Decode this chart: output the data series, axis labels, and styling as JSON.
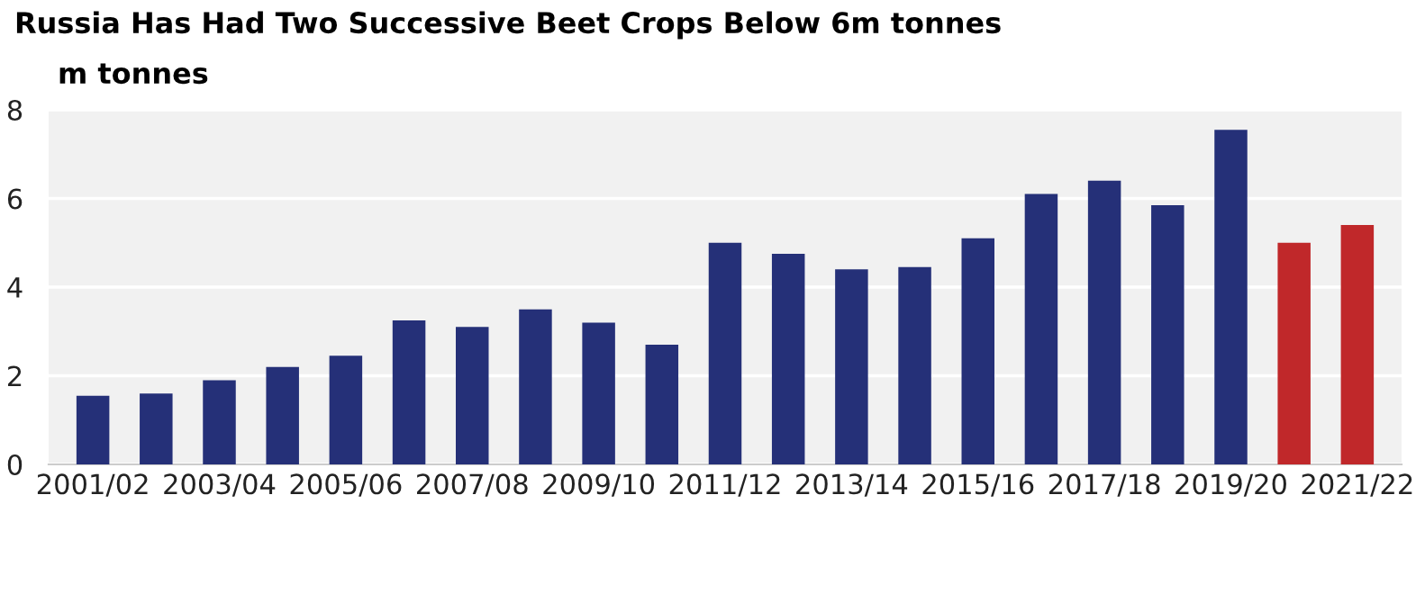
{
  "chart_data": {
    "type": "bar",
    "title": "Russia Has Had Two Successive Beet Crops Below 6m tonnes",
    "subtitle": "m tonnes",
    "categories": [
      "2001/02",
      null,
      "2003/04",
      null,
      "2005/06",
      null,
      "2007/08",
      null,
      "2009/10",
      null,
      "2011/12",
      null,
      "2013/14",
      null,
      "2015/16",
      null,
      "2017/18",
      null,
      "2019/20",
      null,
      "2021/22"
    ],
    "values": [
      1.55,
      1.6,
      1.9,
      2.2,
      2.45,
      3.25,
      3.1,
      3.5,
      3.2,
      2.7,
      5.0,
      4.75,
      4.4,
      4.45,
      5.1,
      6.1,
      6.4,
      5.85,
      7.55,
      5.0,
      5.4
    ],
    "colors": [
      "#253078",
      "#253078",
      "#253078",
      "#253078",
      "#253078",
      "#253078",
      "#253078",
      "#253078",
      "#253078",
      "#253078",
      "#253078",
      "#253078",
      "#253078",
      "#253078",
      "#253078",
      "#253078",
      "#253078",
      "#253078",
      "#253078",
      "#c0282a",
      "#c0282a"
    ],
    "ylim": [
      0,
      8
    ],
    "yticks": [
      0,
      2,
      4,
      6,
      8
    ],
    "grid": "y"
  }
}
